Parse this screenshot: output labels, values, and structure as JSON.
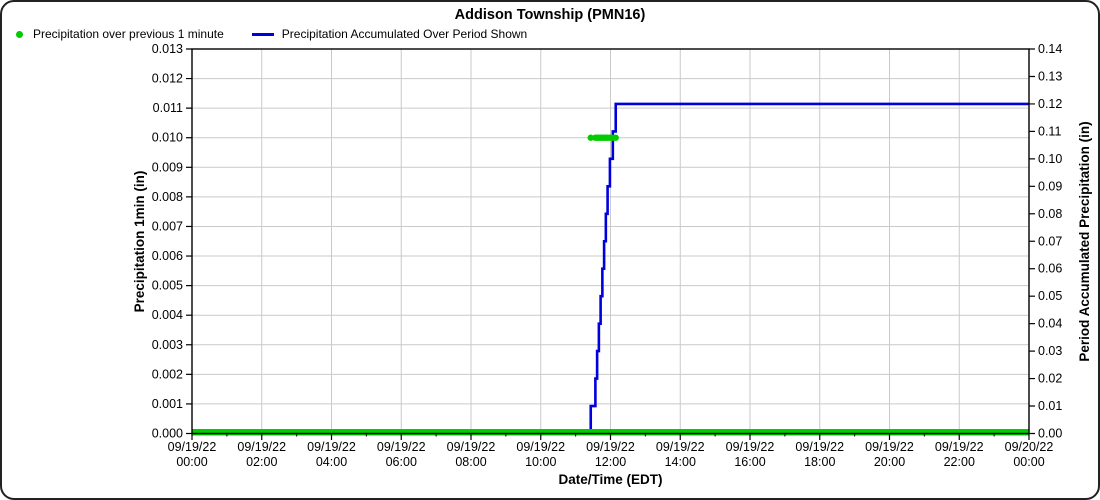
{
  "card": {
    "title": "Addison Township (PMN16)"
  },
  "colors": {
    "precip_dot_green": "#00CC00",
    "accum_line_blue": "#0000DD",
    "gridline": "#C9C9C9",
    "frame": "#000000",
    "background": "#FFFFFF"
  },
  "chart_data": {
    "type": "line",
    "title": "Addison Township (PMN16)",
    "x_axis": {
      "label": "Date/Time (EDT)",
      "range_hours": [
        0,
        24
      ],
      "major_tick_interval_hours": 2,
      "minor_tick_interval_hours": 1,
      "ticks": [
        {
          "hour": 0,
          "date": "09/19/22",
          "time": "00:00"
        },
        {
          "hour": 2,
          "date": "09/19/22",
          "time": "02:00"
        },
        {
          "hour": 4,
          "date": "09/19/22",
          "time": "04:00"
        },
        {
          "hour": 6,
          "date": "09/19/22",
          "time": "06:00"
        },
        {
          "hour": 8,
          "date": "09/19/22",
          "time": "08:00"
        },
        {
          "hour": 10,
          "date": "09/19/22",
          "time": "10:00"
        },
        {
          "hour": 12,
          "date": "09/19/22",
          "time": "12:00"
        },
        {
          "hour": 14,
          "date": "09/19/22",
          "time": "14:00"
        },
        {
          "hour": 16,
          "date": "09/19/22",
          "time": "16:00"
        },
        {
          "hour": 18,
          "date": "09/19/22",
          "time": "18:00"
        },
        {
          "hour": 20,
          "date": "09/19/22",
          "time": "20:00"
        },
        {
          "hour": 22,
          "date": "09/19/22",
          "time": "22:00"
        },
        {
          "hour": 24,
          "date": "09/20/22",
          "time": "00:00"
        }
      ]
    },
    "y_left": {
      "label": "Precipitation 1min (in)",
      "min": 0,
      "max": 0.013,
      "step": 0.001,
      "decimals": 3
    },
    "y_right": {
      "label": "Period Accumulated Precipitation (in)",
      "min": 0,
      "max": 0.14,
      "step": 0.01,
      "decimals": 2
    },
    "grid": {
      "horizontal": "left-axis-steps",
      "vertical": "2-hour-steps",
      "color": "#C9C9C9"
    },
    "series": [
      {
        "name": "Precipitation over previous 1 minute",
        "type": "scatter",
        "axis": "left",
        "color": "#00CC00",
        "marker": "dot",
        "zero_baseline": {
          "value": 0.0,
          "from": "00:00",
          "to": "24:00"
        },
        "point_value": 0.01,
        "points_at_value": [
          "11:26",
          "11:34",
          "11:37",
          "11:40",
          "11:43",
          "11:46",
          "11:49",
          "11:52",
          "11:55",
          "11:59",
          "12:04",
          "12:09"
        ]
      },
      {
        "name": "Precipitation Accumulated Over Period Shown",
        "type": "step-line",
        "axis": "right",
        "color": "#0000DD",
        "marker": "line",
        "points": [
          [
            "00:00",
            0.0
          ],
          [
            "11:26",
            0.01
          ],
          [
            "11:34",
            0.02
          ],
          [
            "11:37",
            0.03
          ],
          [
            "11:40",
            0.04
          ],
          [
            "11:43",
            0.05
          ],
          [
            "11:46",
            0.06
          ],
          [
            "11:49",
            0.07
          ],
          [
            "11:52",
            0.08
          ],
          [
            "11:55",
            0.09
          ],
          [
            "11:59",
            0.1
          ],
          [
            "12:04",
            0.11
          ],
          [
            "12:09",
            0.12
          ],
          [
            "24:00",
            0.12
          ]
        ]
      }
    ]
  }
}
